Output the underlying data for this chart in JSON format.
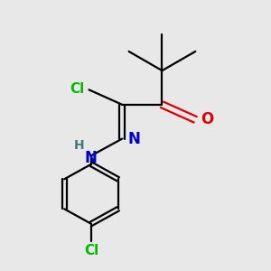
{
  "bg_color": "#e8e8e8",
  "bond_color": "#000000",
  "cl_color": "#00bb00",
  "o_color": "#dd0000",
  "n_color": "#0000cc",
  "figsize": [
    3.0,
    3.0
  ],
  "dpi": 100,
  "xlim": [
    -0.1,
    1.1
  ],
  "ylim": [
    -0.15,
    1.1
  ],
  "bond_lw": 1.6,
  "font_size": 11
}
